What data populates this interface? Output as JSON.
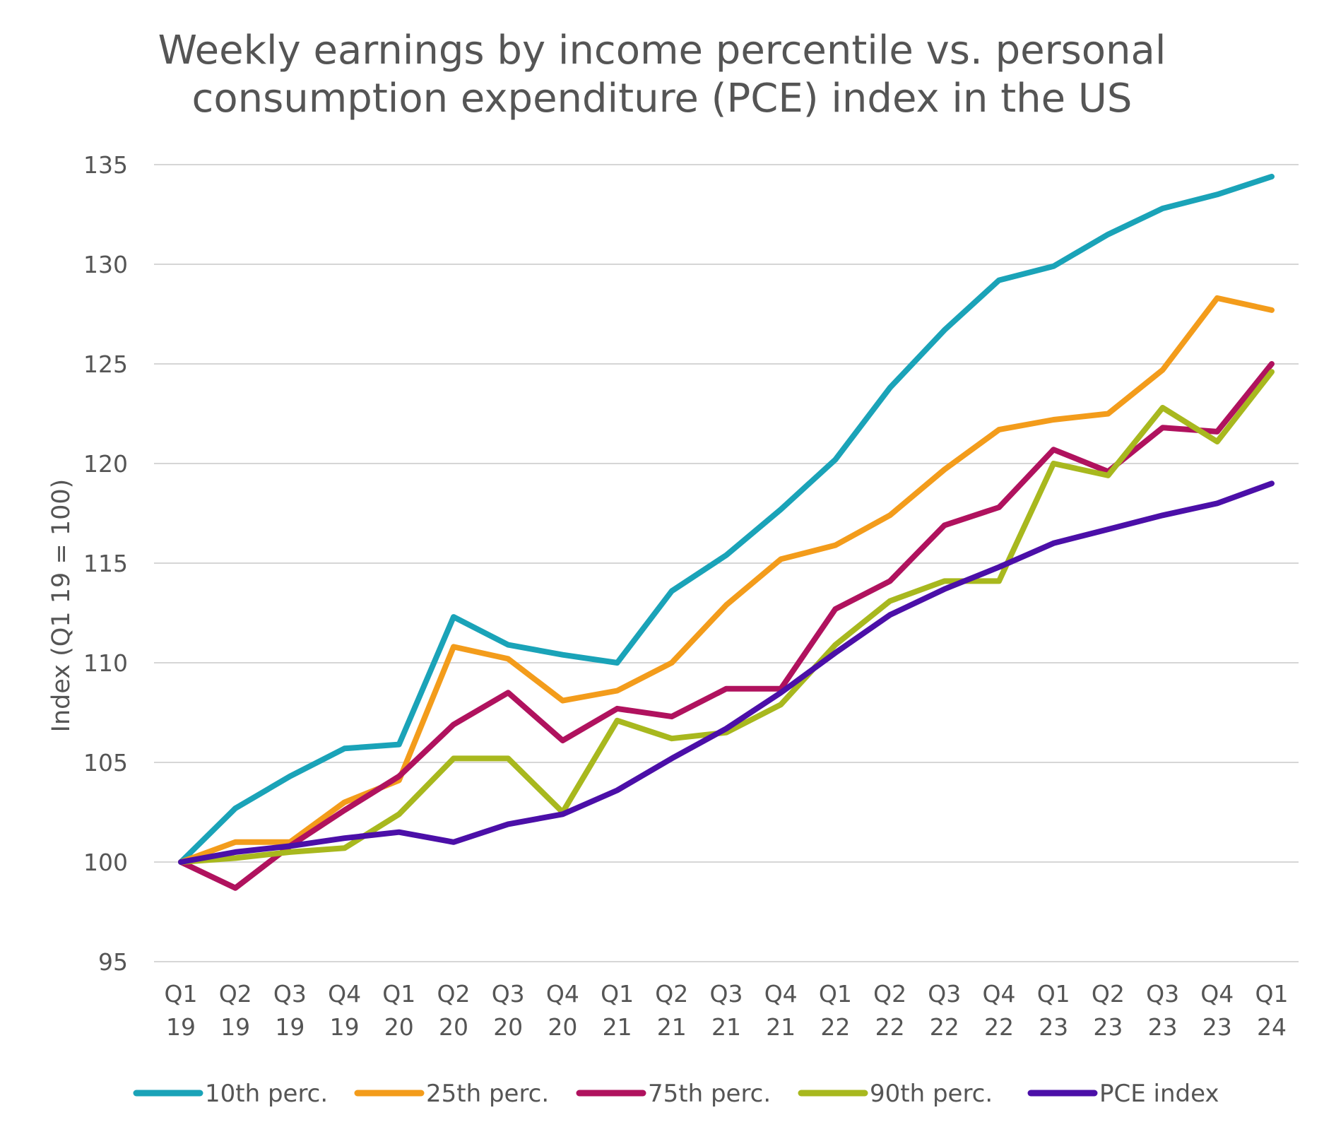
{
  "chart_data": {
    "type": "line",
    "title_line1": "Weekly earnings by income percentile vs. personal",
    "title_line2": "consumption expenditure (PCE) index in the US",
    "xlabel": "",
    "ylabel": "Index (Q1 19 = 100)",
    "ylim": [
      95,
      135
    ],
    "yticks": [
      95,
      100,
      105,
      110,
      115,
      120,
      125,
      130,
      135
    ],
    "grid": true,
    "legend_position": "bottom",
    "categories": [
      [
        "Q1",
        "19"
      ],
      [
        "Q2",
        "19"
      ],
      [
        "Q3",
        "19"
      ],
      [
        "Q4",
        "19"
      ],
      [
        "Q1",
        "20"
      ],
      [
        "Q2",
        "20"
      ],
      [
        "Q3",
        "20"
      ],
      [
        "Q4",
        "20"
      ],
      [
        "Q1",
        "21"
      ],
      [
        "Q2",
        "21"
      ],
      [
        "Q3",
        "21"
      ],
      [
        "Q4",
        "21"
      ],
      [
        "Q1",
        "22"
      ],
      [
        "Q2",
        "22"
      ],
      [
        "Q3",
        "22"
      ],
      [
        "Q4",
        "22"
      ],
      [
        "Q1",
        "23"
      ],
      [
        "Q2",
        "23"
      ],
      [
        "Q3",
        "23"
      ],
      [
        "Q4",
        "23"
      ],
      [
        "Q1",
        "24"
      ]
    ],
    "series": [
      {
        "name": "10th perc.",
        "color": "#1aa3b8",
        "values": [
          100,
          102.7,
          104.3,
          105.7,
          105.9,
          112.3,
          110.9,
          110.4,
          110.0,
          113.6,
          115.4,
          117.7,
          120.2,
          123.8,
          126.7,
          129.2,
          129.9,
          131.5,
          132.8,
          133.5,
          134.4
        ]
      },
      {
        "name": "25th perc.",
        "color": "#f39c1b",
        "values": [
          100,
          101.0,
          101.0,
          103.0,
          104.1,
          110.8,
          110.2,
          108.1,
          108.6,
          110.0,
          112.9,
          115.2,
          115.9,
          117.4,
          119.7,
          121.7,
          122.2,
          122.5,
          124.7,
          128.3,
          127.7
        ]
      },
      {
        "name": "75th perc.",
        "color": "#b0125e",
        "values": [
          100,
          98.7,
          100.8,
          102.6,
          104.3,
          106.9,
          108.5,
          106.1,
          107.7,
          107.3,
          108.7,
          108.7,
          112.7,
          114.1,
          116.9,
          117.8,
          120.7,
          119.6,
          121.8,
          121.6,
          125.0
        ]
      },
      {
        "name": "90th perc.",
        "color": "#a8b81e",
        "values": [
          100,
          100.2,
          100.5,
          100.7,
          102.4,
          105.2,
          105.2,
          102.5,
          107.1,
          106.2,
          106.5,
          107.9,
          110.9,
          113.1,
          114.1,
          114.1,
          120.0,
          119.4,
          122.8,
          121.1,
          124.6
        ]
      },
      {
        "name": "PCE index",
        "color": "#4b0fa8",
        "values": [
          100,
          100.5,
          100.8,
          101.2,
          101.5,
          101.0,
          101.9,
          102.4,
          103.6,
          105.2,
          106.7,
          108.5,
          110.5,
          112.4,
          113.7,
          114.8,
          116.0,
          116.7,
          117.4,
          118.0,
          119.0
        ]
      }
    ]
  }
}
